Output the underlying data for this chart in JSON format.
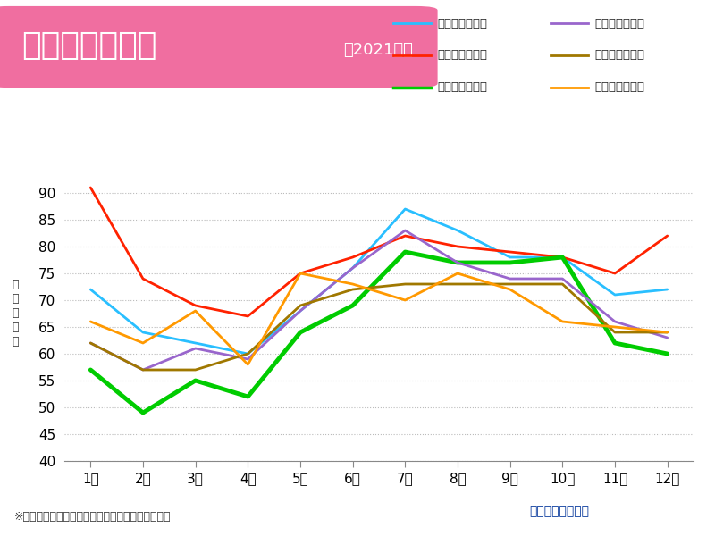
{
  "title_main": "月別の湿度変化",
  "title_sub": "（2021年）",
  "footnote": "※気象庁のデータから作成（相対湿度の月平均値）",
  "weathernews": "ウェザーニュース",
  "months": [
    "1月",
    "2月",
    "3月",
    "4月",
    "5月",
    "6月",
    "7月",
    "8月",
    "9月",
    "10月",
    "11月",
    "12月"
  ],
  "ylabel": "湿\n度\n（\n％\n）",
  "ylim": [
    40,
    95
  ],
  "yticks": [
    40,
    45,
    50,
    55,
    60,
    65,
    70,
    75,
    80,
    85,
    90
  ],
  "series": [
    {
      "label": "宮城県（仙台）",
      "color": "#29BFFF",
      "linewidth": 2.0,
      "values": [
        72,
        64,
        62,
        60,
        68,
        76,
        87,
        83,
        78,
        78,
        71,
        72
      ]
    },
    {
      "label": "富山県（富山）",
      "color": "#FF2200",
      "linewidth": 2.0,
      "values": [
        91,
        74,
        69,
        67,
        75,
        78,
        82,
        80,
        79,
        78,
        75,
        82
      ]
    },
    {
      "label": "群馬県（前橋）",
      "color": "#00CC00",
      "linewidth": 3.5,
      "values": [
        57,
        49,
        55,
        52,
        64,
        69,
        79,
        77,
        77,
        78,
        62,
        60
      ]
    },
    {
      "label": "東京都（東京）",
      "color": "#9966CC",
      "linewidth": 2.0,
      "values": [
        62,
        57,
        61,
        59,
        68,
        76,
        83,
        77,
        74,
        74,
        66,
        63
      ]
    },
    {
      "label": "大阪府（大阪）",
      "color": "#A07800",
      "linewidth": 2.0,
      "values": [
        62,
        57,
        57,
        60,
        69,
        72,
        73,
        73,
        73,
        73,
        64,
        64
      ]
    },
    {
      "label": "福岡県（福岡）",
      "color": "#FF9900",
      "linewidth": 2.0,
      "values": [
        66,
        62,
        68,
        58,
        75,
        73,
        70,
        75,
        72,
        66,
        65,
        64
      ]
    }
  ],
  "legend_order": [
    0,
    3,
    1,
    4,
    2,
    5
  ],
  "bg_color": "#ffffff",
  "title_bg_color": "#F06EA0",
  "title_text_color": "#ffffff",
  "grid_color": "#bbbbbb",
  "brand_blue": "#003399",
  "brand_text": "#003399"
}
